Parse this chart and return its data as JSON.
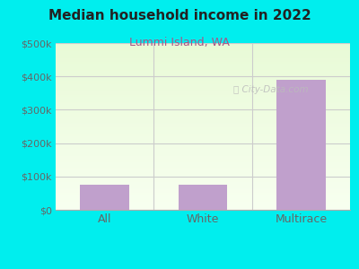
{
  "title": "Median household income in 2022",
  "subtitle": "Lummi Island, WA",
  "categories": [
    "All",
    "White",
    "Multirace"
  ],
  "values": [
    75000,
    75000,
    390000
  ],
  "bar_color": "#c0a0cc",
  "bg_color": "#00EEEE",
  "title_color": "#222222",
  "subtitle_color": "#aa5588",
  "tick_label_color": "#666666",
  "ylim": [
    0,
    500000
  ],
  "yticks": [
    0,
    100000,
    200000,
    300000,
    400000,
    500000
  ],
  "ytick_labels": [
    "$0",
    "$100k",
    "$200k",
    "$300k",
    "$400k",
    "$500k"
  ],
  "watermark": "City-Data.com",
  "watermark_color": "#bbbbbb",
  "grid_color": "#cccccc",
  "divider_color": "#cccccc"
}
